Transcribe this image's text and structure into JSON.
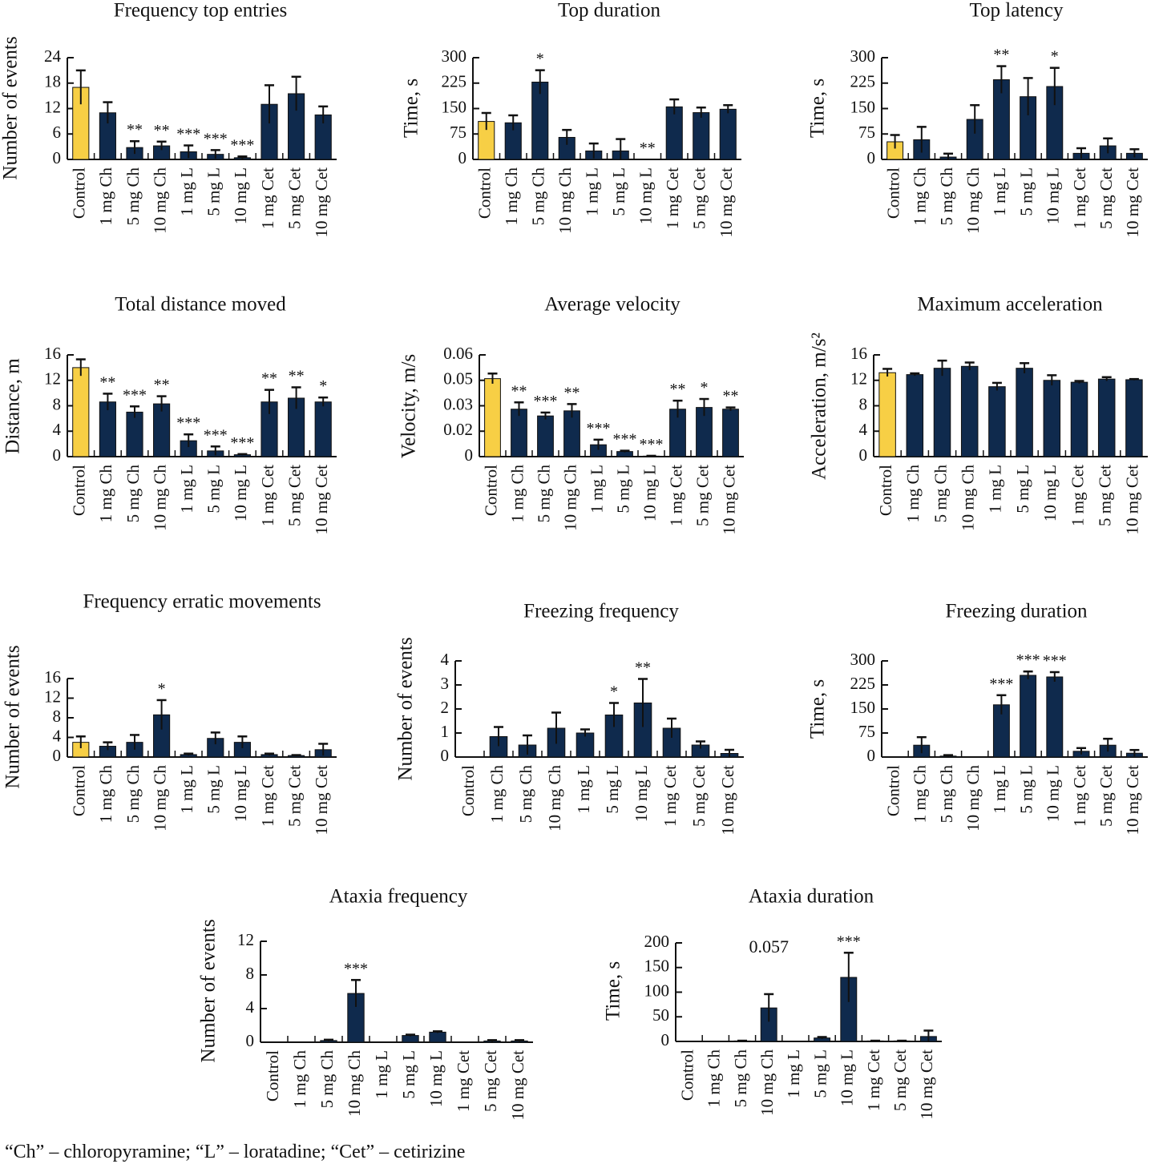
{
  "colors": {
    "control": "#f7cf45",
    "treatment": "#0f2a4d",
    "axis": "#111111"
  },
  "categories": [
    "Control",
    "1 mg Ch",
    "5 mg Ch",
    "10 mg Ch",
    "1 mg L",
    "5 mg L",
    "10 mg L",
    "1 mg Cet",
    "5 mg Cet",
    "10 mg Cet"
  ],
  "caption": "“Ch” – chloropyramine; “L” – loratadine; “Cet” – cetirizine",
  "chart_data": [
    {
      "type": "bar",
      "title": "Frequency top entries",
      "ylabel": "Number of events",
      "ylim": [
        0,
        24
      ],
      "yticks": [
        0,
        6,
        12,
        18,
        24
      ],
      "ytick_labels": [
        "0",
        "6",
        "12",
        "18",
        "24"
      ],
      "values": [
        17,
        11,
        2.8,
        3.2,
        1.8,
        1.2,
        0.4,
        13,
        15.5,
        10.5
      ],
      "errors": [
        4,
        2.5,
        1.5,
        1,
        1.5,
        1,
        0.3,
        4.5,
        4,
        2
      ],
      "annotations": [
        "",
        "",
        "**",
        "**",
        "***",
        "***",
        "***",
        "",
        "",
        ""
      ]
    },
    {
      "type": "bar",
      "title": "Top duration",
      "ylabel": "Time, s",
      "ylim": [
        0,
        300
      ],
      "yticks": [
        0,
        75,
        150,
        225,
        300
      ],
      "ytick_labels": [
        "0",
        "75",
        "150",
        "225",
        "300"
      ],
      "values": [
        112,
        108,
        228,
        65,
        25,
        25,
        0,
        155,
        138,
        148
      ],
      "errors": [
        25,
        22,
        35,
        22,
        22,
        35,
        0,
        22,
        15,
        12
      ],
      "annotations": [
        "",
        "",
        "*",
        "",
        "",
        "",
        "**",
        "",
        "",
        ""
      ]
    },
    {
      "type": "bar",
      "title": "Top latency",
      "ylabel": "Time, s",
      "ylim": [
        0,
        300
      ],
      "yticks": [
        0,
        75,
        150,
        225,
        300
      ],
      "ytick_labels": [
        "0",
        "75",
        "150",
        "225",
        "300"
      ],
      "values": [
        52,
        58,
        7,
        118,
        235,
        185,
        215,
        18,
        40,
        18
      ],
      "errors": [
        20,
        38,
        10,
        42,
        40,
        55,
        55,
        15,
        22,
        12
      ],
      "annotations": [
        "",
        "",
        "",
        "",
        "**",
        "",
        "*",
        "",
        "",
        ""
      ]
    },
    {
      "type": "bar",
      "title": "Total distance moved",
      "ylabel": "Distance, m",
      "ylim": [
        0,
        16
      ],
      "yticks": [
        0,
        4,
        8,
        12,
        16
      ],
      "ytick_labels": [
        "0",
        "4",
        "8",
        "12",
        "16"
      ],
      "values": [
        14,
        8.6,
        7,
        8.3,
        2.5,
        0.9,
        0.3,
        8.6,
        9.2,
        8.6
      ],
      "errors": [
        1.3,
        1.3,
        0.9,
        1.2,
        1,
        0.7,
        0.1,
        1.9,
        1.7,
        0.7
      ],
      "annotations": [
        "",
        "**",
        "***",
        "**",
        "***",
        "***",
        "***",
        "**",
        "**",
        "*"
      ]
    },
    {
      "type": "bar",
      "title": "Average velocity",
      "ylabel": "Velocity, m/s",
      "ylim": [
        0,
        0.06
      ],
      "yticks": [
        0,
        0.015,
        0.03,
        0.045,
        0.06
      ],
      "ytick_labels": [
        "0",
        "0.02",
        "0.03",
        "0.05",
        "0.06"
      ],
      "values": [
        0.046,
        0.028,
        0.024,
        0.027,
        0.007,
        0.003,
        0.0003,
        0.028,
        0.029,
        0.028
      ],
      "errors": [
        0.003,
        0.004,
        0.002,
        0.004,
        0.003,
        0.0005,
        0.0002,
        0.005,
        0.005,
        0.001
      ],
      "annotations": [
        "",
        "**",
        "***",
        "**",
        "***",
        "***",
        "***",
        "**",
        "*",
        "**"
      ]
    },
    {
      "type": "bar",
      "title": "Maximum acceleration",
      "ylabel": "Acceleration, m/s²",
      "ylim": [
        0,
        16
      ],
      "yticks": [
        0,
        4,
        8,
        12,
        16
      ],
      "ytick_labels": [
        "0",
        "4",
        "8",
        "12",
        "16"
      ],
      "values": [
        13.2,
        12.9,
        13.9,
        14.2,
        11,
        13.9,
        12,
        11.7,
        12.2,
        12.1
      ],
      "errors": [
        0.6,
        0.2,
        1.2,
        0.6,
        0.6,
        0.8,
        0.8,
        0.2,
        0.3,
        0.1
      ],
      "annotations": [
        "",
        "",
        "",
        "",
        "",
        "",
        "",
        "",
        "",
        ""
      ]
    },
    {
      "type": "bar",
      "title": "Frequency erratic movements",
      "ylabel": "Number of events",
      "ylim": [
        0,
        16
      ],
      "yticks": [
        0,
        4,
        8,
        12,
        16
      ],
      "ytick_labels": [
        "0",
        "4",
        "8",
        "12",
        "16"
      ],
      "values": [
        3,
        2.2,
        3,
        8.6,
        0.5,
        3.8,
        3,
        0.5,
        0.3,
        1.5
      ],
      "errors": [
        1.2,
        0.8,
        1.5,
        3,
        0.2,
        1.2,
        1.2,
        0.2,
        0.1,
        1.2
      ],
      "annotations": [
        "",
        "",
        "",
        "*",
        "",
        "",
        "",
        "",
        "",
        ""
      ]
    },
    {
      "type": "bar",
      "title": "Freezing frequency",
      "ylabel": "Number of events",
      "ylim": [
        0,
        4
      ],
      "yticks": [
        0,
        1,
        2,
        3,
        4
      ],
      "ytick_labels": [
        "0",
        "1",
        "2",
        "3",
        "4"
      ],
      "values": [
        0,
        0.85,
        0.5,
        1.2,
        1.0,
        1.75,
        2.25,
        1.2,
        0.5,
        0.15
      ],
      "errors": [
        0,
        0.4,
        0.4,
        0.65,
        0.15,
        0.5,
        1.0,
        0.4,
        0.15,
        0.15
      ],
      "annotations": [
        "",
        "",
        "",
        "",
        "",
        "*",
        "**",
        "",
        "",
        ""
      ]
    },
    {
      "type": "bar",
      "title": "Freezing duration",
      "ylabel": "Time, s",
      "ylim": [
        0,
        300
      ],
      "yticks": [
        0,
        75,
        150,
        225,
        300
      ],
      "ytick_labels": [
        "0",
        "75",
        "150",
        "225",
        "300"
      ],
      "values": [
        0,
        37,
        3,
        0,
        163,
        255,
        250,
        18,
        37,
        12
      ],
      "errors": [
        0,
        25,
        3,
        0,
        30,
        12,
        15,
        10,
        20,
        10
      ],
      "annotations": [
        "",
        "",
        "",
        "",
        "***",
        "***",
        "***",
        "",
        "",
        ""
      ]
    },
    {
      "type": "bar",
      "title": "Ataxia frequency",
      "ylabel": "Number of events",
      "ylim": [
        0,
        12
      ],
      "yticks": [
        0,
        4,
        8,
        12
      ],
      "ytick_labels": [
        "0",
        "4",
        "8",
        "12"
      ],
      "values": [
        0,
        0,
        0.2,
        5.8,
        0,
        0.8,
        1.2,
        0,
        0.15,
        0.15
      ],
      "errors": [
        0,
        0,
        0.1,
        1.6,
        0,
        0.1,
        0.1,
        0,
        0.1,
        0.1
      ],
      "annotations": [
        "",
        "",
        "",
        "***",
        "",
        "",
        "",
        "",
        "",
        ""
      ]
    },
    {
      "type": "bar",
      "title": "Ataxia duration",
      "ylabel": "Time, s",
      "ylim": [
        0,
        200
      ],
      "yticks": [
        0,
        50,
        100,
        150,
        200
      ],
      "ytick_labels": [
        "0",
        "50",
        "100",
        "150",
        "200"
      ],
      "values": [
        0,
        0,
        1,
        68,
        0,
        7,
        130,
        1,
        1,
        10
      ],
      "errors": [
        0,
        0,
        0.5,
        28,
        0,
        2,
        50,
        0.5,
        0.5,
        12
      ],
      "annotations": [
        "",
        "",
        "",
        "0.057",
        "",
        "",
        "***",
        "",
        "",
        ""
      ]
    }
  ]
}
